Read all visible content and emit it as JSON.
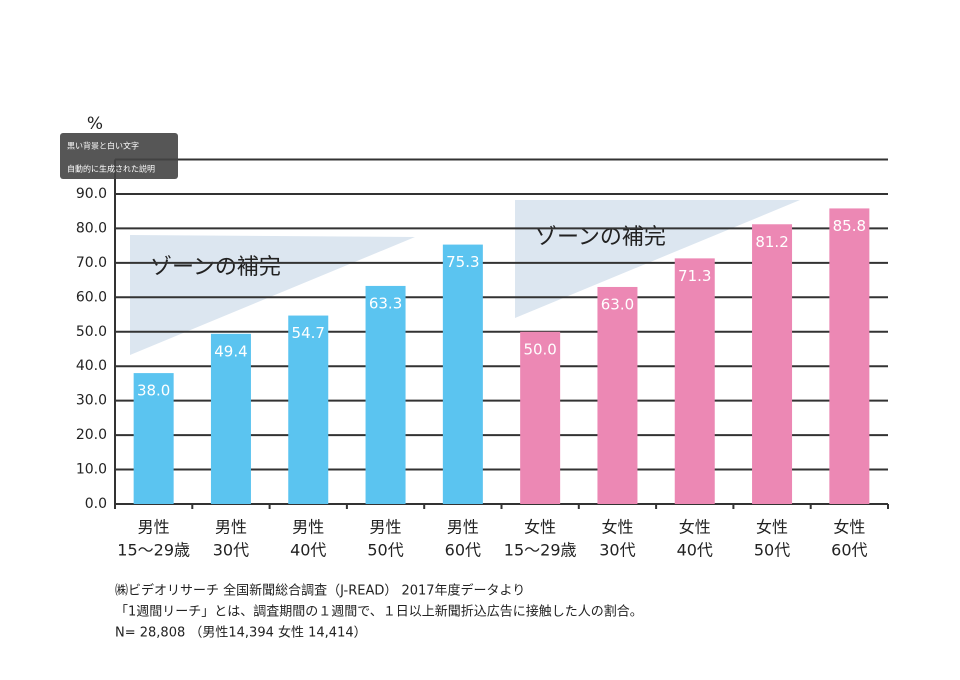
{
  "chart_data": {
    "type": "bar",
    "y_label": "%",
    "categories": [
      [
        "男性",
        "15〜29歳"
      ],
      [
        "男性",
        "30代"
      ],
      [
        "男性",
        "40代"
      ],
      [
        "男性",
        "50代"
      ],
      [
        "男性",
        "60代"
      ],
      [
        "女性",
        "15〜29歳"
      ],
      [
        "女性",
        "30代"
      ],
      [
        "女性",
        "40代"
      ],
      [
        "女性",
        "50代"
      ],
      [
        "女性",
        "60代"
      ]
    ],
    "values": [
      38.0,
      49.4,
      54.7,
      63.3,
      75.3,
      50.0,
      63.0,
      71.3,
      81.2,
      85.8
    ],
    "value_labels": [
      "38.0",
      "49.4",
      "54.7",
      "63.3",
      "75.3",
      "50.0",
      "63.0",
      "71.3",
      "81.2",
      "85.8"
    ],
    "colors": [
      "#5bc4f0",
      "#5bc4f0",
      "#5bc4f0",
      "#5bc4f0",
      "#5bc4f0",
      "#ec88b4",
      "#ec88b4",
      "#ec88b4",
      "#ec88b4",
      "#ec88b4"
    ],
    "ylim": [
      0,
      100
    ],
    "yticks": [
      {
        "value": 0,
        "label": "0.0"
      },
      {
        "value": 10,
        "label": "10.0"
      },
      {
        "value": 20,
        "label": "20.0"
      },
      {
        "value": 30,
        "label": "30.0"
      },
      {
        "value": 40,
        "label": "40.0"
      },
      {
        "value": 50,
        "label": "50.0"
      },
      {
        "value": 60,
        "label": "60.0"
      },
      {
        "value": 70,
        "label": "70.0"
      },
      {
        "value": 80,
        "label": "80.0"
      },
      {
        "value": 90,
        "label": "90.0"
      }
    ],
    "grid": true,
    "annotations": [
      "ゾーンの補完",
      "ゾーンの補完"
    ],
    "notes": [
      "㈱ビデオリサーチ 全国新聞総合調査（J-READ） 2017年度データより",
      "「1週間リーチ」とは、調査期間の１週間で、１日以上新聞折込広告に接触した人の割合。",
      "N= 28,808 （男性14,394 女性 14,414）"
    ],
    "overlay": [
      "黒い背景と白い文字",
      "自動的に生成された説明"
    ]
  }
}
